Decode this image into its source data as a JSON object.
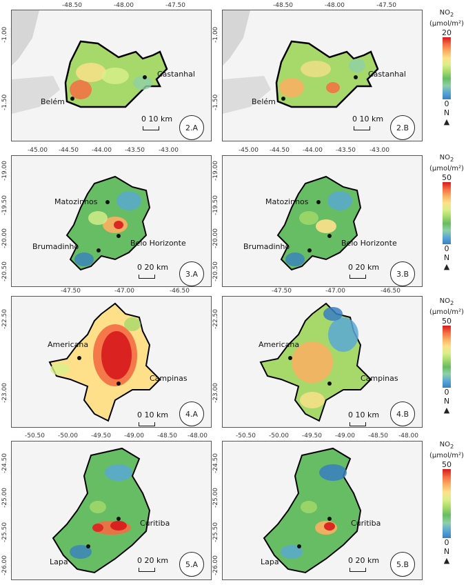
{
  "legend": {
    "title": "NO",
    "subscript": "2",
    "unit": "(µmol/m²)",
    "colors": [
      "#d7191c",
      "#f46d43",
      "#fdae61",
      "#fee08b",
      "#d9ef8b",
      "#a6d96a",
      "#66bd63",
      "#8fd0a8",
      "#5aa8d6",
      "#3a7fc1"
    ],
    "north": "N"
  },
  "rows": [
    {
      "id": "2",
      "legend_max": "20",
      "legend_min": "0",
      "x_ticks": [
        "-48.50",
        "-48.00",
        "-47.50"
      ],
      "y_ticks": [
        "-1.00",
        "-1.50"
      ],
      "scale": "0   10 km",
      "cities": [
        "Castanhal",
        "Belém"
      ],
      "panels": [
        {
          "badge": "2.A"
        },
        {
          "badge": "2.B"
        }
      ]
    },
    {
      "id": "3",
      "legend_max": "50",
      "legend_min": "0",
      "x_ticks": [
        "-45.00",
        "-44.50",
        "-44.00",
        "-43.50",
        "-43.00"
      ],
      "y_ticks": [
        "-19.00",
        "-19.50",
        "-20.00",
        "-20.50"
      ],
      "scale": "0   20 km",
      "cities": [
        "Matozinhos",
        "Brumadinho",
        "Belo Horizonte"
      ],
      "panels": [
        {
          "badge": "3.A"
        },
        {
          "badge": "3.B"
        }
      ]
    },
    {
      "id": "4",
      "legend_max": "50",
      "legend_min": "0",
      "x_ticks": [
        "-47.50",
        "-47.00",
        "-46.50"
      ],
      "y_ticks": [
        "-22.50",
        "-23.00"
      ],
      "scale": "0   10 km",
      "cities": [
        "Americana",
        "Campinas"
      ],
      "panels": [
        {
          "badge": "4.A"
        },
        {
          "badge": "4.B"
        }
      ]
    },
    {
      "id": "5",
      "legend_max": "50",
      "legend_min": "0",
      "x_ticks": [
        "-50.50",
        "-50.00",
        "-49.50",
        "-49.00",
        "-48.50",
        "-48.00"
      ],
      "y_ticks": [
        "-24.50",
        "-25.00",
        "-25.50",
        "-26.00"
      ],
      "scale": "0   20 km",
      "cities": [
        "Curitiba",
        "Lapa"
      ],
      "panels": [
        {
          "badge": "5.A"
        },
        {
          "badge": "5.B"
        }
      ]
    }
  ]
}
